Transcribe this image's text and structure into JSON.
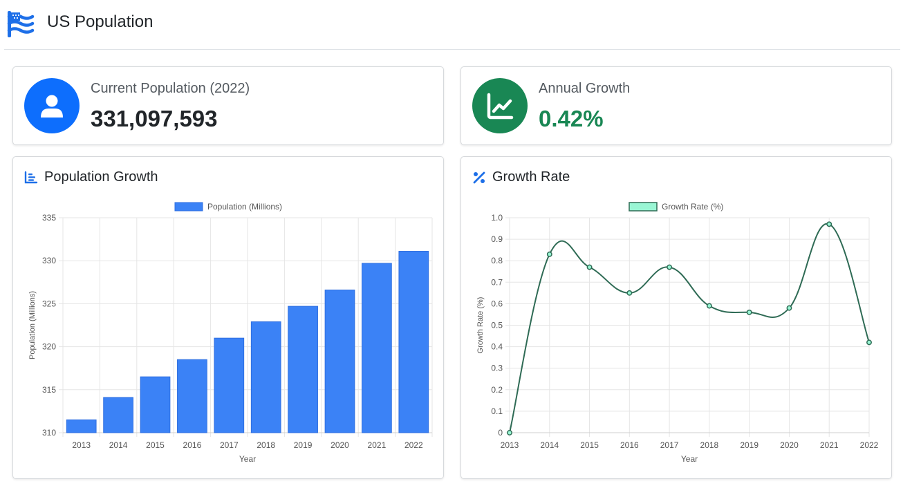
{
  "header": {
    "title": "US Population",
    "icon": "us-flag-icon"
  },
  "stats": {
    "population": {
      "label": "Current Population (2022)",
      "value": "331,097,593",
      "icon": "user-icon",
      "color": "#0d6efd"
    },
    "growth": {
      "label": "Annual Growth",
      "value": "0.42%",
      "icon": "chart-line-icon",
      "color": "#198754"
    }
  },
  "cards": {
    "population_growth": {
      "title": "Population Growth",
      "icon": "bar-chart-icon"
    },
    "growth_rate": {
      "title": "Growth Rate",
      "icon": "percent-icon"
    }
  },
  "chart_data": [
    {
      "type": "bar",
      "categories": [
        "2013",
        "2014",
        "2015",
        "2016",
        "2017",
        "2018",
        "2019",
        "2020",
        "2021",
        "2022"
      ],
      "series": [
        {
          "name": "Population (Millions)",
          "values": [
            311.5,
            314.1,
            316.5,
            318.5,
            321.0,
            322.9,
            324.7,
            326.6,
            329.7,
            331.1
          ]
        }
      ],
      "xlabel": "Year",
      "ylabel": "Population (Millions)",
      "ylim": [
        310,
        335
      ],
      "yticks": [
        310,
        315,
        320,
        325,
        330,
        335
      ],
      "grid": true,
      "legend": "top-center",
      "color": "#3b82f6"
    },
    {
      "type": "line",
      "categories": [
        "2013",
        "2014",
        "2015",
        "2016",
        "2017",
        "2018",
        "2019",
        "2020",
        "2021",
        "2022"
      ],
      "series": [
        {
          "name": "Growth Rate (%)",
          "values": [
            0,
            0.83,
            0.77,
            0.65,
            0.77,
            0.59,
            0.56,
            0.58,
            0.97,
            0.42
          ]
        }
      ],
      "xlabel": "Year",
      "ylabel": "Growth Rate (%)",
      "ylim": [
        0,
        1.0
      ],
      "yticks": [
        "0",
        "0.1",
        "0.2",
        "0.3",
        "0.4",
        "0.5",
        "0.6",
        "0.7",
        "0.8",
        "0.9",
        "1.0"
      ],
      "grid": true,
      "legend": "top-center",
      "color": "#2f6b55",
      "fill_color": "#99f6d4"
    }
  ]
}
